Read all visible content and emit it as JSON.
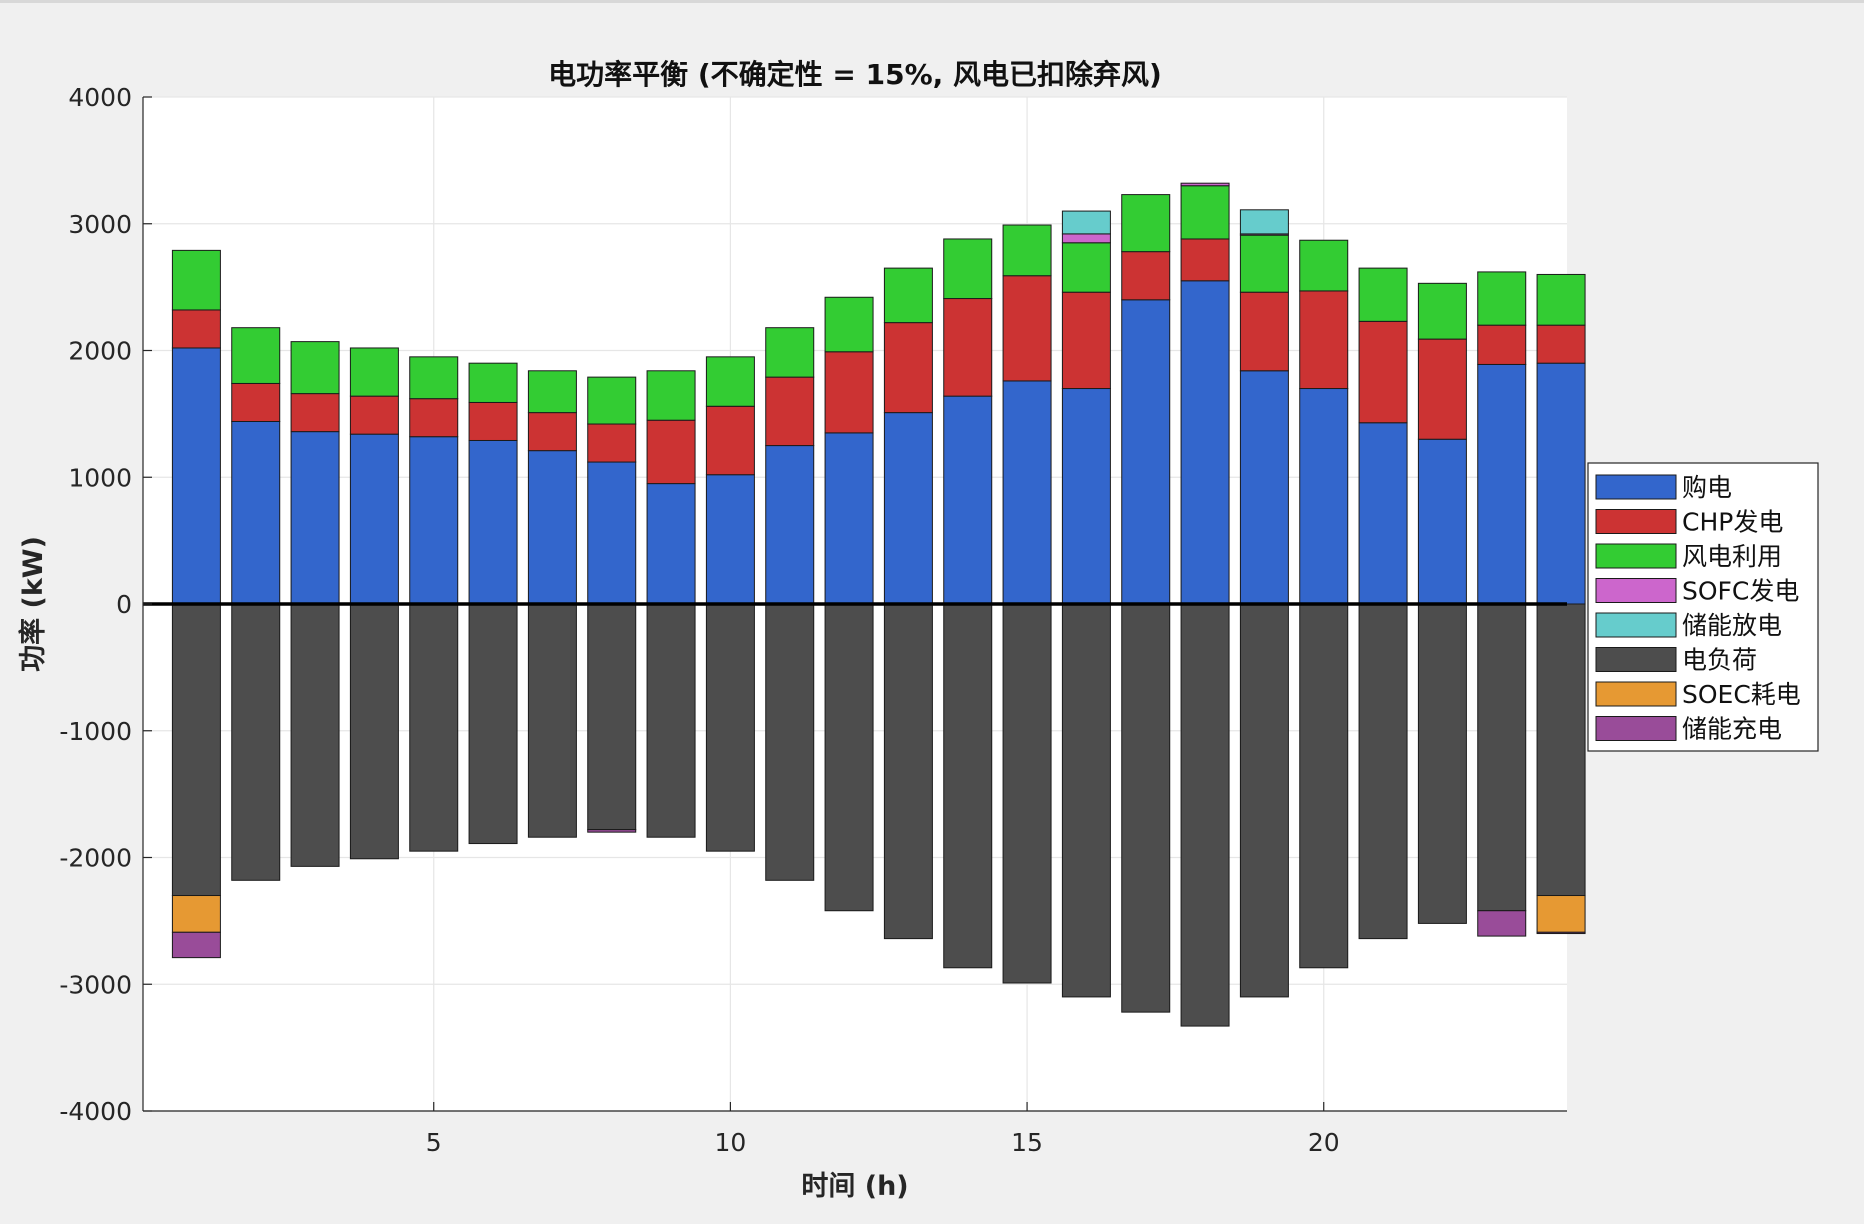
{
  "chart_data": {
    "type": "bar",
    "stacked": true,
    "title": "电功率平衡 (不确定性 = 15%, 风电已扣除弃风)",
    "xlabel": "时间 (h)",
    "ylabel": "功率 (kW)",
    "ylim": [
      -4000,
      4000
    ],
    "xlim": [
      0.1,
      24.1
    ],
    "yticks": [
      -4000,
      -3000,
      -2000,
      -1000,
      0,
      1000,
      2000,
      3000,
      4000
    ],
    "xticks": [
      5,
      10,
      15,
      20
    ],
    "grid": true,
    "legend_position": "right",
    "x": [
      1,
      2,
      3,
      4,
      5,
      6,
      7,
      8,
      9,
      10,
      11,
      12,
      13,
      14,
      15,
      16,
      17,
      18,
      19,
      20,
      21,
      22,
      23,
      24
    ],
    "series": [
      {
        "name": "购电",
        "color": "#3366cc",
        "direction": "positive",
        "values": [
          2020,
          1440,
          1360,
          1340,
          1320,
          1290,
          1210,
          1120,
          950,
          1020,
          1250,
          1350,
          1510,
          1640,
          1760,
          1700,
          2400,
          2550,
          1840,
          1700,
          1430,
          1300,
          1890,
          1900
        ]
      },
      {
        "name": "CHP发电",
        "color": "#cc3333",
        "direction": "positive",
        "values": [
          300,
          300,
          300,
          300,
          300,
          300,
          300,
          300,
          500,
          540,
          540,
          640,
          710,
          770,
          830,
          760,
          380,
          330,
          620,
          770,
          800,
          790,
          310,
          300
        ]
      },
      {
        "name": "风电利用",
        "color": "#33cc33",
        "direction": "positive",
        "values": [
          470,
          440,
          410,
          380,
          330,
          310,
          330,
          370,
          390,
          390,
          390,
          430,
          430,
          470,
          400,
          390,
          450,
          420,
          450,
          400,
          420,
          440,
          420,
          400
        ]
      },
      {
        "name": "SOFC发电",
        "color": "#cc66cc",
        "direction": "positive",
        "values": [
          0,
          0,
          0,
          0,
          0,
          0,
          0,
          0,
          0,
          0,
          0,
          0,
          0,
          0,
          0,
          70,
          0,
          20,
          10,
          0,
          0,
          0,
          0,
          0
        ]
      },
      {
        "name": "储能放电",
        "color": "#66cccc",
        "direction": "positive",
        "values": [
          0,
          0,
          0,
          0,
          0,
          0,
          0,
          0,
          0,
          0,
          0,
          0,
          0,
          0,
          0,
          180,
          0,
          0,
          190,
          0,
          0,
          0,
          0,
          0
        ]
      },
      {
        "name": "电负荷",
        "color": "#4d4d4d",
        "direction": "negative",
        "values": [
          -2300,
          -2180,
          -2070,
          -2010,
          -1950,
          -1890,
          -1840,
          -1780,
          -1840,
          -1950,
          -2180,
          -2420,
          -2640,
          -2870,
          -2990,
          -3100,
          -3220,
          -3330,
          -3100,
          -2870,
          -2640,
          -2520,
          -2420,
          -2300
        ]
      },
      {
        "name": "SOEC耗电",
        "color": "#e69933",
        "direction": "negative",
        "values": [
          -290,
          0,
          0,
          0,
          0,
          0,
          0,
          0,
          0,
          0,
          0,
          0,
          0,
          0,
          0,
          0,
          0,
          0,
          0,
          0,
          0,
          0,
          0,
          -290
        ]
      },
      {
        "name": "储能充电",
        "color": "#994c99",
        "direction": "negative",
        "values": [
          -200,
          0,
          0,
          0,
          0,
          0,
          0,
          -20,
          0,
          0,
          0,
          0,
          0,
          0,
          0,
          0,
          0,
          0,
          0,
          0,
          0,
          0,
          -200,
          -10
        ]
      }
    ]
  }
}
